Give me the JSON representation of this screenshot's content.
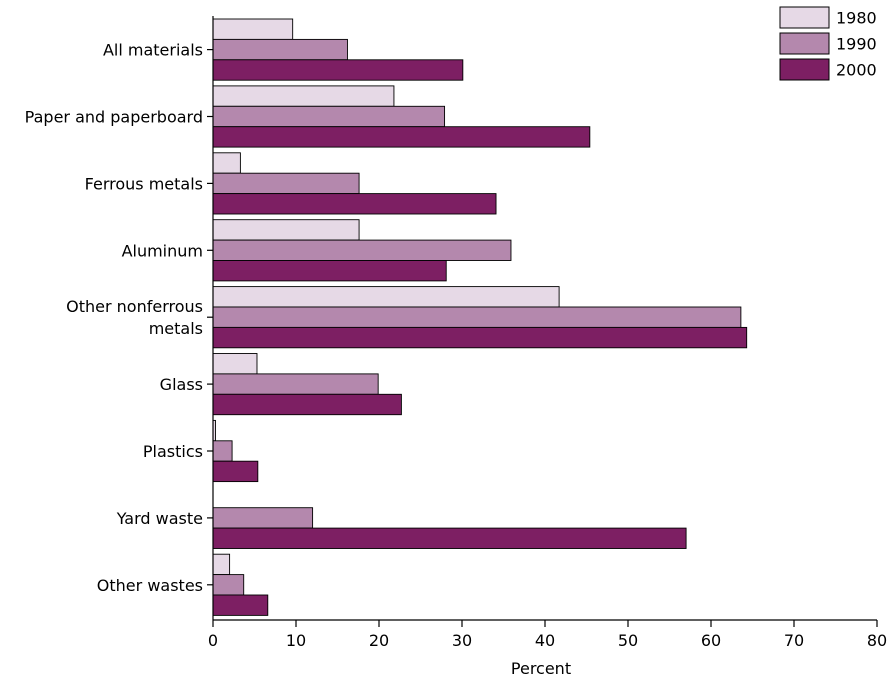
{
  "chart_data": {
    "type": "bar",
    "orientation": "horizontal",
    "title": "",
    "xlabel": "Percent",
    "ylabel": "",
    "xlim": [
      0,
      80
    ],
    "x_ticks": [
      0,
      10,
      20,
      30,
      40,
      50,
      60,
      70,
      80
    ],
    "grid": false,
    "legend_position": "top-right",
    "categories": [
      "All materials",
      "Paper and paperboard",
      "Ferrous metals",
      "Aluminum",
      "Other nonferrous metals",
      "Glass",
      "Plastics",
      "Yard waste",
      "Other wastes"
    ],
    "category_lines": [
      [
        "All materials"
      ],
      [
        "Paper and paperboard"
      ],
      [
        "Ferrous metals"
      ],
      [
        "Aluminum"
      ],
      [
        "Other nonferrous",
        "metals"
      ],
      [
        "Glass"
      ],
      [
        "Plastics"
      ],
      [
        "Yard waste"
      ],
      [
        "Other wastes"
      ]
    ],
    "series": [
      {
        "name": "1980",
        "color": "#e6d9e6",
        "values": [
          9.6,
          21.8,
          3.3,
          17.6,
          41.7,
          5.3,
          0.3,
          0,
          2.0
        ]
      },
      {
        "name": "1990",
        "color": "#b488ad",
        "values": [
          16.2,
          27.9,
          17.6,
          35.9,
          63.6,
          19.9,
          2.3,
          12.0,
          3.7
        ]
      },
      {
        "name": "2000",
        "color": "#7d1f63",
        "values": [
          30.1,
          45.4,
          34.1,
          28.1,
          64.3,
          22.7,
          5.4,
          57.0,
          6.6
        ]
      }
    ]
  }
}
